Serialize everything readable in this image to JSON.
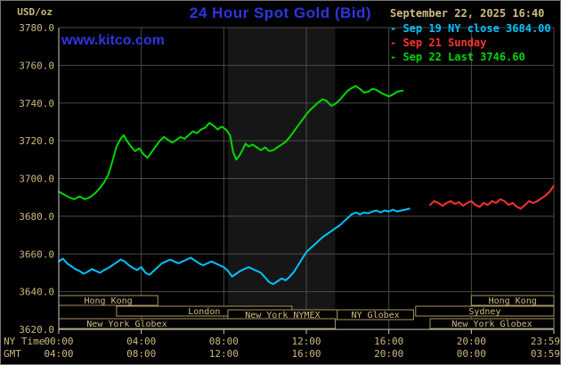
{
  "header": {
    "title": "24 Hour Spot Gold (Bid)",
    "unit_label": "USD/oz",
    "datetime": "September 22, 2025 16:40",
    "watermark": "www.kitco.com"
  },
  "legend": {
    "items": [
      {
        "label": "- Sep 19 NY close 3684.00",
        "color": "#00c3ff"
      },
      {
        "label": "- Sep 21 Sunday",
        "color": "#ff3232"
      },
      {
        "label": "- Sep 22 Last 3746.60",
        "color": "#00d800"
      }
    ]
  },
  "axes": {
    "x_left_label": "NY Time",
    "x_left_label2": "GMT",
    "y_ticks": [
      "3780.0",
      "3760.0",
      "3740.0",
      "3720.0",
      "3700.0",
      "3680.0",
      "3660.0",
      "3640.0",
      "3620.0"
    ],
    "ny_ticks": [
      "00:00",
      "04:00",
      "08:00",
      "12:00",
      "16:00",
      "20:00",
      "23:59"
    ],
    "gmt_ticks": [
      "04:00",
      "08:00",
      "12:00",
      "16:00",
      "20:00",
      "00:00",
      "03:59"
    ],
    "x_tick_hours": [
      0,
      4,
      8,
      12,
      16,
      20,
      24
    ]
  },
  "colors": {
    "grid": "#4a4a4a",
    "frame": "#c8c8c8",
    "axis_text": "#cdb87e",
    "session_box": "#a89560",
    "session_text": "#d2bc84",
    "band": "#161616",
    "background": "#000000"
  },
  "chart_data": {
    "type": "line",
    "title": "24 Hour Spot Gold (Bid)",
    "ylabel": "USD/oz",
    "xlabel": "NY Time (00:00-23:59) / GMT (04:00-03:59)",
    "ylim": [
      3620,
      3780
    ],
    "xlim_hours": [
      0,
      24
    ],
    "y_gridline_step": 20,
    "x_gridline_step_hours": 4,
    "grid": true,
    "legend_position": "top-right",
    "highlight_band_hours": [
      8.2,
      13.4
    ],
    "series": [
      {
        "name": "Sep 19 NY close",
        "color": "#00c3ff",
        "close_value": 3684.0,
        "points": [
          [
            0,
            3656
          ],
          [
            0.2,
            3657.5
          ],
          [
            0.4,
            3655
          ],
          [
            0.6,
            3653.5
          ],
          [
            0.8,
            3652
          ],
          [
            1,
            3651
          ],
          [
            1.2,
            3649.5
          ],
          [
            1.4,
            3650.5
          ],
          [
            1.6,
            3652
          ],
          [
            1.8,
            3651
          ],
          [
            2,
            3650
          ],
          [
            2.2,
            3651.5
          ],
          [
            2.4,
            3652.5
          ],
          [
            2.6,
            3654
          ],
          [
            2.8,
            3655.5
          ],
          [
            3,
            3657
          ],
          [
            3.2,
            3656
          ],
          [
            3.4,
            3654
          ],
          [
            3.6,
            3652.5
          ],
          [
            3.8,
            3651.5
          ],
          [
            4,
            3653
          ],
          [
            4.2,
            3650
          ],
          [
            4.4,
            3649
          ],
          [
            4.6,
            3651
          ],
          [
            4.8,
            3653
          ],
          [
            5,
            3655
          ],
          [
            5.2,
            3656
          ],
          [
            5.4,
            3657
          ],
          [
            5.6,
            3656
          ],
          [
            5.8,
            3655
          ],
          [
            6,
            3656
          ],
          [
            6.2,
            3657
          ],
          [
            6.4,
            3658
          ],
          [
            6.6,
            3656.5
          ],
          [
            6.8,
            3655
          ],
          [
            7,
            3654
          ],
          [
            7.2,
            3655
          ],
          [
            7.4,
            3656
          ],
          [
            7.6,
            3655
          ],
          [
            7.8,
            3654
          ],
          [
            8,
            3653
          ],
          [
            8.2,
            3651
          ],
          [
            8.4,
            3648
          ],
          [
            8.6,
            3649.5
          ],
          [
            8.8,
            3651
          ],
          [
            9,
            3652
          ],
          [
            9.2,
            3653
          ],
          [
            9.4,
            3652
          ],
          [
            9.6,
            3651
          ],
          [
            9.8,
            3650
          ],
          [
            10,
            3647.5
          ],
          [
            10.2,
            3645
          ],
          [
            10.4,
            3644
          ],
          [
            10.6,
            3645.5
          ],
          [
            10.8,
            3647
          ],
          [
            11,
            3646
          ],
          [
            11.2,
            3648
          ],
          [
            11.4,
            3650.5
          ],
          [
            11.6,
            3654
          ],
          [
            11.8,
            3657.5
          ],
          [
            12,
            3661
          ],
          [
            12.2,
            3663
          ],
          [
            12.4,
            3665
          ],
          [
            12.6,
            3667
          ],
          [
            12.8,
            3669
          ],
          [
            13,
            3670.5
          ],
          [
            13.2,
            3672
          ],
          [
            13.4,
            3673.5
          ],
          [
            13.6,
            3675
          ],
          [
            13.8,
            3677
          ],
          [
            14,
            3679
          ],
          [
            14.2,
            3681
          ],
          [
            14.4,
            3682
          ],
          [
            14.6,
            3681
          ],
          [
            14.8,
            3682
          ],
          [
            15,
            3681.5
          ],
          [
            15.2,
            3682.5
          ],
          [
            15.4,
            3683
          ],
          [
            15.6,
            3682
          ],
          [
            15.8,
            3683
          ],
          [
            16,
            3682.5
          ],
          [
            16.2,
            3683.5
          ],
          [
            16.4,
            3682.5
          ],
          [
            16.6,
            3683
          ],
          [
            16.8,
            3683.5
          ],
          [
            17,
            3684
          ]
        ]
      },
      {
        "name": "Sep 21 Sunday",
        "color": "#ff3232",
        "points": [
          [
            18,
            3686
          ],
          [
            18.2,
            3688
          ],
          [
            18.4,
            3687
          ],
          [
            18.6,
            3685.5
          ],
          [
            18.8,
            3687
          ],
          [
            19,
            3688
          ],
          [
            19.2,
            3686.5
          ],
          [
            19.4,
            3687.5
          ],
          [
            19.6,
            3685.5
          ],
          [
            19.8,
            3687
          ],
          [
            20,
            3688
          ],
          [
            20.2,
            3686
          ],
          [
            20.4,
            3685
          ],
          [
            20.6,
            3687
          ],
          [
            20.8,
            3686
          ],
          [
            21,
            3688
          ],
          [
            21.2,
            3687
          ],
          [
            21.4,
            3689
          ],
          [
            21.6,
            3688
          ],
          [
            21.8,
            3686
          ],
          [
            22,
            3687
          ],
          [
            22.2,
            3685
          ],
          [
            22.4,
            3684
          ],
          [
            22.6,
            3686
          ],
          [
            22.8,
            3688
          ],
          [
            23,
            3687
          ],
          [
            23.2,
            3688
          ],
          [
            23.4,
            3689.5
          ],
          [
            23.6,
            3691
          ],
          [
            23.8,
            3693
          ],
          [
            23.98,
            3696
          ]
        ]
      },
      {
        "name": "Sep 22 Last",
        "color": "#00d800",
        "last_value": 3746.6,
        "points": [
          [
            0,
            3693
          ],
          [
            0.25,
            3691.5
          ],
          [
            0.5,
            3690
          ],
          [
            0.75,
            3689
          ],
          [
            1,
            3690.5
          ],
          [
            1.25,
            3689
          ],
          [
            1.5,
            3690
          ],
          [
            1.75,
            3692
          ],
          [
            2,
            3695
          ],
          [
            2.2,
            3698
          ],
          [
            2.4,
            3702
          ],
          [
            2.6,
            3709
          ],
          [
            2.8,
            3717
          ],
          [
            3,
            3721
          ],
          [
            3.15,
            3723
          ],
          [
            3.3,
            3720
          ],
          [
            3.5,
            3717
          ],
          [
            3.7,
            3714.5
          ],
          [
            3.9,
            3716
          ],
          [
            4.1,
            3713
          ],
          [
            4.3,
            3711
          ],
          [
            4.5,
            3714
          ],
          [
            4.7,
            3717
          ],
          [
            4.9,
            3720
          ],
          [
            5.1,
            3722
          ],
          [
            5.3,
            3720.5
          ],
          [
            5.5,
            3719
          ],
          [
            5.7,
            3720.5
          ],
          [
            5.9,
            3722
          ],
          [
            6.1,
            3721
          ],
          [
            6.3,
            3723
          ],
          [
            6.5,
            3725
          ],
          [
            6.7,
            3724
          ],
          [
            6.9,
            3726
          ],
          [
            7.1,
            3727
          ],
          [
            7.3,
            3729.5
          ],
          [
            7.5,
            3728
          ],
          [
            7.7,
            3726
          ],
          [
            7.9,
            3727.5
          ],
          [
            8.1,
            3726
          ],
          [
            8.3,
            3723
          ],
          [
            8.45,
            3714
          ],
          [
            8.6,
            3710
          ],
          [
            8.75,
            3712
          ],
          [
            8.9,
            3715
          ],
          [
            9.05,
            3718.5
          ],
          [
            9.2,
            3717
          ],
          [
            9.4,
            3718
          ],
          [
            9.6,
            3716.5
          ],
          [
            9.8,
            3715
          ],
          [
            10,
            3716.5
          ],
          [
            10.2,
            3714.5
          ],
          [
            10.4,
            3715
          ],
          [
            10.6,
            3716.5
          ],
          [
            10.8,
            3718
          ],
          [
            11,
            3719.5
          ],
          [
            11.2,
            3722
          ],
          [
            11.4,
            3725
          ],
          [
            11.6,
            3728
          ],
          [
            11.8,
            3731
          ],
          [
            12,
            3734
          ],
          [
            12.2,
            3736.5
          ],
          [
            12.4,
            3738.5
          ],
          [
            12.6,
            3740.5
          ],
          [
            12.8,
            3742
          ],
          [
            13,
            3741
          ],
          [
            13.2,
            3738.5
          ],
          [
            13.4,
            3739.5
          ],
          [
            13.6,
            3741.5
          ],
          [
            13.8,
            3744
          ],
          [
            14,
            3746.5
          ],
          [
            14.2,
            3748
          ],
          [
            14.4,
            3749
          ],
          [
            14.6,
            3747.5
          ],
          [
            14.8,
            3745.5
          ],
          [
            15,
            3746
          ],
          [
            15.2,
            3747.5
          ],
          [
            15.4,
            3747
          ],
          [
            15.6,
            3745.5
          ],
          [
            15.8,
            3744.5
          ],
          [
            16,
            3743.5
          ],
          [
            16.2,
            3744.5
          ],
          [
            16.4,
            3746
          ],
          [
            16.67,
            3746.6
          ]
        ]
      }
    ],
    "market_sessions": [
      {
        "label": "Hong Kong",
        "row": 0,
        "start": 0,
        "end": 4.8
      },
      {
        "label": "Hong Kong",
        "row": 0,
        "start": 20,
        "end": 24
      },
      {
        "label": "London",
        "row": 1,
        "start": 2.8,
        "end": 11.3
      },
      {
        "label": "Sydney",
        "row": 1,
        "start": 17.3,
        "end": 24
      },
      {
        "label": "New York NYMEX",
        "row": 2,
        "start": 8.2,
        "end": 13.5
      },
      {
        "label": "NY Globex",
        "row": 2,
        "start": 13.5,
        "end": 17.2
      },
      {
        "label": "New York Globex",
        "row": 3,
        "start": 0,
        "end": 13.4,
        "label_at": 3.3
      },
      {
        "label": "New York Globex",
        "row": 3,
        "start": 18,
        "end": 24
      }
    ]
  }
}
